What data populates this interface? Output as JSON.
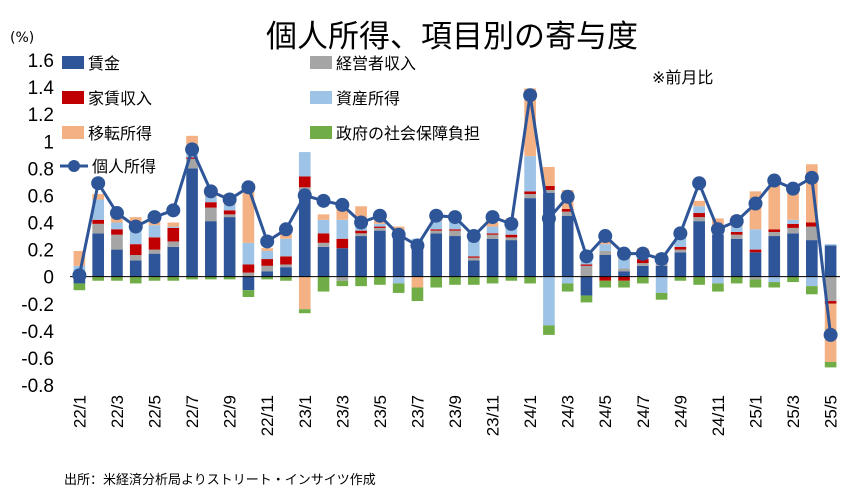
{
  "chart_data": {
    "type": "bar",
    "title": "個人所得、項目別の寄与度",
    "unit_label": "(%)",
    "note": "※前月比",
    "source": "出所：米経済分析局よりストリート・インサイツ作成",
    "ylim": [
      -0.8,
      1.6
    ],
    "yticks": [
      "1.6",
      "1.4",
      "1.2",
      "1",
      "0.8",
      "0.6",
      "0.4",
      "0.2",
      "0",
      "-0.2",
      "-0.4",
      "-0.6",
      "-0.8"
    ],
    "ytick_values": [
      1.6,
      1.4,
      1.2,
      1.0,
      0.8,
      0.6,
      0.4,
      0.2,
      0,
      -0.2,
      -0.4,
      -0.6,
      -0.8
    ],
    "grid": false,
    "legend_placement": "top-left",
    "categories": [
      "22/1",
      "22/2",
      "22/3",
      "22/4",
      "22/5",
      "22/6",
      "22/7",
      "22/8",
      "22/9",
      "22/10",
      "22/11",
      "22/12",
      "23/1",
      "23/2",
      "23/3",
      "23/4",
      "23/5",
      "23/6",
      "23/7",
      "23/8",
      "23/9",
      "23/10",
      "23/11",
      "23/12",
      "24/1",
      "24/2",
      "24/3",
      "24/4",
      "24/5",
      "24/6",
      "24/7",
      "24/8",
      "24/9",
      "24/10",
      "24/11",
      "24/12",
      "25/1",
      "25/2",
      "25/3",
      "25/4",
      "25/5"
    ],
    "tick_labels": [
      "22/1",
      "",
      "22/3",
      "",
      "22/5",
      "",
      "22/7",
      "",
      "22/9",
      "",
      "22/11",
      "",
      "23/1",
      "",
      "23/3",
      "",
      "23/5",
      "",
      "23/7",
      "",
      "23/9",
      "",
      "23/11",
      "",
      "24/1",
      "",
      "24/3",
      "",
      "24/5",
      "",
      "24/7",
      "",
      "24/9",
      "",
      "24/11",
      "",
      "25/1",
      "",
      "25/3",
      "",
      "25/5"
    ],
    "series": [
      {
        "name": "賃金",
        "color": "#2E5597",
        "values": [
          -0.05,
          0.32,
          0.2,
          0.12,
          0.17,
          0.22,
          0.8,
          0.41,
          0.44,
          -0.1,
          0.04,
          0.07,
          0.58,
          0.22,
          0.21,
          0.3,
          0.34,
          0.28,
          0.22,
          0.32,
          0.3,
          0.12,
          0.28,
          0.27,
          0.58,
          0.62,
          0.45,
          -0.14,
          0.16,
          0.04,
          0.08,
          0.08,
          0.18,
          0.41,
          0.31,
          0.28,
          0.18,
          0.3,
          0.32,
          0.27,
          0.23
        ]
      },
      {
        "name": "経営者収入",
        "color": "#A5A5A5",
        "values": [
          0.02,
          0.07,
          0.11,
          0.04,
          0.03,
          0.04,
          0.07,
          0.1,
          0.02,
          0.03,
          0.04,
          0.02,
          0.08,
          0.03,
          -0.03,
          0.02,
          0.02,
          0.01,
          0.01,
          0.02,
          0.04,
          0.02,
          0.03,
          0.02,
          0.03,
          0.02,
          0.03,
          0.08,
          0.03,
          0.02,
          0.02,
          0.02,
          0.02,
          0.03,
          0.03,
          0.03,
          -0.02,
          0.03,
          0.04,
          0.1,
          -0.18
        ]
      },
      {
        "name": "家賃収入",
        "color": "#C00000",
        "values": [
          0.01,
          0.03,
          0.04,
          0.08,
          0.09,
          0.1,
          0.01,
          0.04,
          0.03,
          0.06,
          0.05,
          0.06,
          0.08,
          0.07,
          0.07,
          0.02,
          0.01,
          0.01,
          0.01,
          0.01,
          0.01,
          0.01,
          0.01,
          0.02,
          0.02,
          0.03,
          0.02,
          0.01,
          -0.03,
          -0.03,
          0.03,
          0.02,
          0.02,
          0.03,
          0.01,
          0.02,
          0.02,
          0.02,
          0.03,
          0.03,
          -0.02
        ]
      },
      {
        "name": "資産所得",
        "color": "#9DC3E6",
        "values": [
          0.05,
          0.15,
          0.05,
          0.15,
          0.09,
          0.01,
          0.05,
          0.04,
          0.04,
          0.16,
          0.06,
          0.13,
          0.18,
          0.1,
          0.14,
          0.09,
          0.02,
          -0.05,
          0.04,
          0.06,
          0.1,
          0.12,
          0.05,
          0.08,
          0.26,
          -0.36,
          -0.05,
          0.05,
          0.05,
          0.07,
          0.03,
          -0.12,
          0.08,
          0.05,
          -0.05,
          0.04,
          0.15,
          -0.04,
          0.03,
          -0.07,
          0.01
        ]
      },
      {
        "name": "移転所得",
        "color": "#F4B183",
        "values": [
          0.11,
          0.04,
          0.05,
          0.05,
          0.05,
          0.03,
          0.11,
          0.02,
          0.08,
          0.44,
          0.02,
          0.04,
          -0.24,
          0.04,
          0.1,
          0.09,
          0.08,
          0.07,
          -0.08,
          0.01,
          0.02,
          0.05,
          0.03,
          0.04,
          0.5,
          0.14,
          0.14,
          0.03,
          0.04,
          0.04,
          0.05,
          0.05,
          0.04,
          0.04,
          0.08,
          0.08,
          0.28,
          0.39,
          0.21,
          0.43,
          -0.43
        ]
      },
      {
        "name": "政府の社会保障負担",
        "color": "#70AD47",
        "values": [
          -0.05,
          -0.03,
          -0.03,
          -0.05,
          -0.03,
          -0.03,
          -0.02,
          -0.02,
          -0.02,
          -0.05,
          -0.02,
          -0.03,
          -0.03,
          -0.11,
          -0.04,
          -0.07,
          -0.06,
          -0.07,
          -0.1,
          -0.08,
          -0.06,
          -0.06,
          -0.05,
          -0.03,
          -0.05,
          -0.07,
          -0.06,
          -0.05,
          -0.05,
          -0.05,
          -0.05,
          -0.05,
          -0.03,
          -0.06,
          -0.06,
          -0.05,
          -0.06,
          -0.04,
          -0.04,
          -0.06,
          -0.04
        ]
      },
      {
        "name": "個人所得",
        "color": "#2E5597",
        "type": "line",
        "values": [
          0.01,
          0.69,
          0.47,
          0.37,
          0.44,
          0.49,
          0.94,
          0.63,
          0.57,
          0.66,
          0.26,
          0.35,
          0.6,
          0.56,
          0.53,
          0.4,
          0.45,
          0.31,
          0.23,
          0.45,
          0.44,
          0.3,
          0.44,
          0.39,
          1.34,
          0.43,
          0.59,
          0.15,
          0.3,
          0.17,
          0.17,
          0.13,
          0.32,
          0.69,
          0.35,
          0.41,
          0.54,
          0.71,
          0.65,
          0.73,
          -0.43
        ]
      }
    ]
  }
}
